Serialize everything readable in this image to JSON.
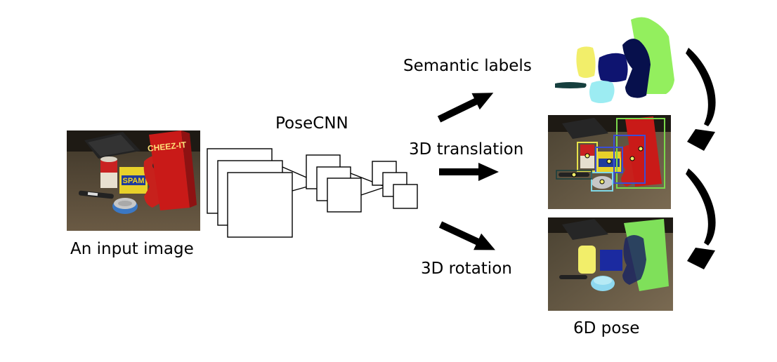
{
  "labels": {
    "input_image": "An input image",
    "network": "PoseCNN",
    "semantic": "Semantic labels",
    "translation": "3D translation",
    "rotation": "3D rotation",
    "pose": "6D pose"
  },
  "photo_text": {
    "box_brand": "CHEEZ-IT",
    "can_label": "SPAM",
    "soup_label": "Campbell's"
  },
  "colors": {
    "segment_yellow": "#f2ee6a",
    "segment_navy": "#0e1470",
    "segment_dark_navy": "#07104c",
    "segment_green": "#93ef5e",
    "segment_cyan": "#9cecf2",
    "segment_teal": "#163f3e",
    "box_red": "#c91a18",
    "bbox_green": "#7bd84c",
    "bbox_blue": "#3a4ed6",
    "bbox_yellow": "#e6e24a",
    "bbox_cyan": "#7fd8e6",
    "arrow": "#000000",
    "outline": "#000000"
  }
}
